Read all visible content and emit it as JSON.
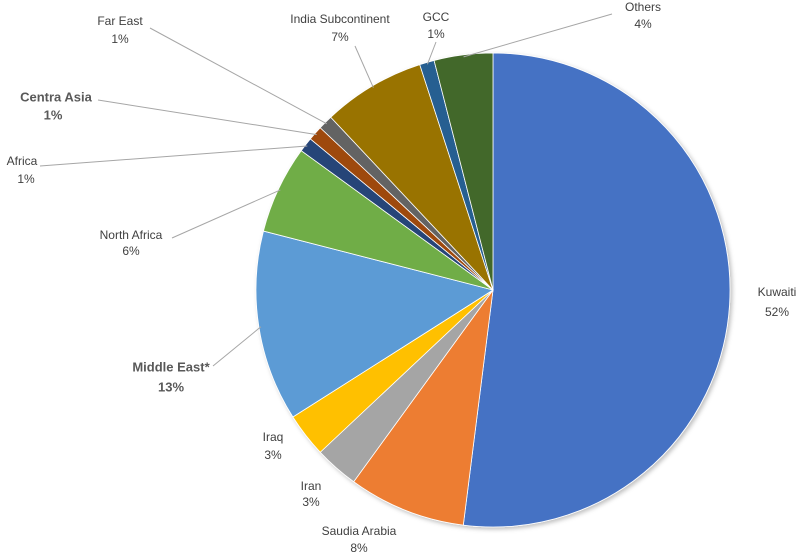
{
  "chart_data": {
    "type": "pie",
    "categories": [
      "Kuwaiti",
      "Saudia Arabia",
      "Iran",
      "Iraq",
      "Middle East*",
      "North Africa",
      "Africa",
      "Centra Asia",
      "Far East",
      "India Subcontinent",
      "GCC",
      "Others"
    ],
    "values": [
      52,
      8,
      3,
      3,
      13,
      6,
      1,
      1,
      1,
      7,
      1,
      4
    ],
    "value_labels": [
      "52%",
      "8%",
      "3%",
      "3%",
      "13%",
      "6%",
      "1%",
      "1%",
      "1%",
      "7%",
      "1%",
      "4%"
    ],
    "colors": [
      "#4472c4",
      "#ed7d31",
      "#a5a5a5",
      "#ffc000",
      "#5b9bd5",
      "#70ad47",
      "#264478",
      "#9e480e",
      "#636363",
      "#997300",
      "#255e91",
      "#43682b"
    ]
  }
}
